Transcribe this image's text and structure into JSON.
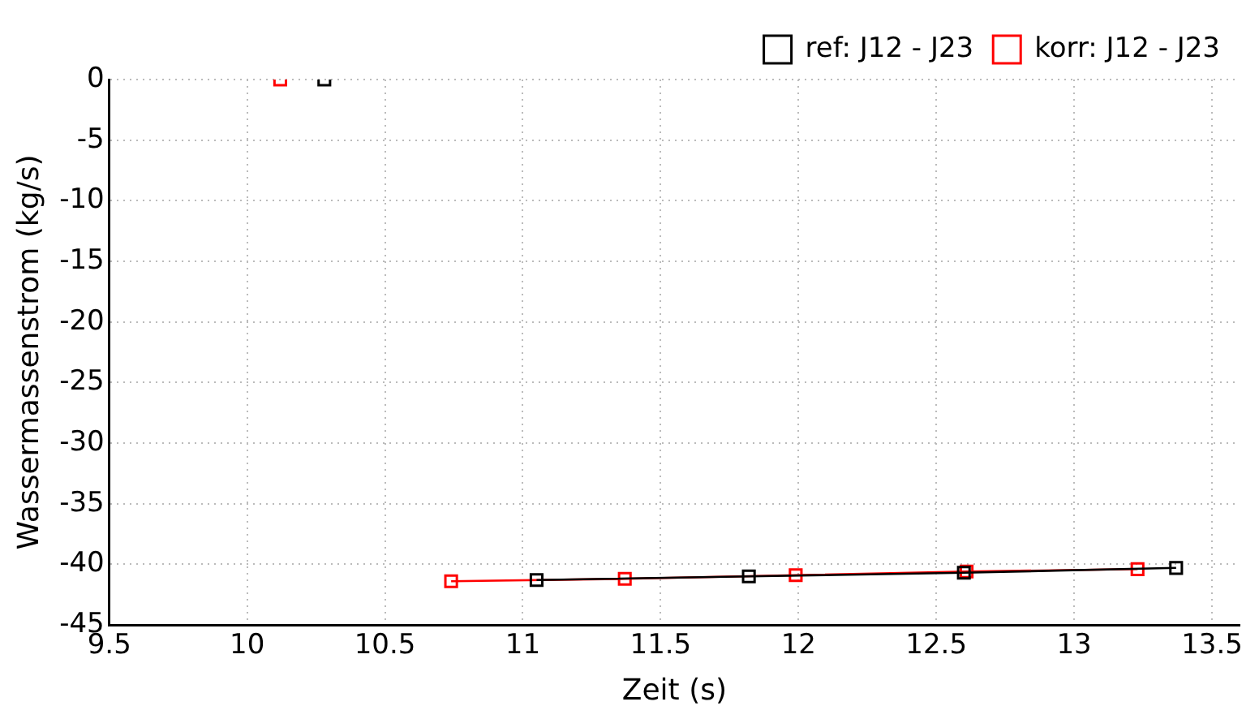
{
  "chart_data": {
    "type": "line",
    "xlabel": "Zeit (s)",
    "ylabel": "Wassermassenstrom (kg/s)",
    "xlim": [
      9.5,
      13.6
    ],
    "xticks": [
      9.5,
      10,
      10.5,
      11,
      11.5,
      12,
      12.5,
      13,
      13.5
    ],
    "ylim": [
      -45,
      0
    ],
    "yticks": [
      -45,
      -40,
      -35,
      -30,
      -25,
      -20,
      -15,
      -10,
      -5,
      0
    ],
    "grid": true,
    "legend": "top right",
    "marker": "square",
    "series": [
      {
        "name": "ref: J12 - J23",
        "color": "#000000",
        "x": [
          10.28,
          10.65,
          11.05,
          11.82,
          12.6,
          13.37
        ],
        "values": [
          0,
          null,
          -41.3,
          -41.0,
          -40.7,
          -40.3
        ]
      },
      {
        "name": "korr: J12 - J23",
        "color": "#ff0000",
        "x": [
          10.12,
          10.65,
          10.74,
          11.37,
          11.99,
          12.61,
          13.23
        ],
        "values": [
          0,
          null,
          -41.4,
          -41.2,
          -40.9,
          -40.6,
          -40.4
        ]
      }
    ]
  }
}
